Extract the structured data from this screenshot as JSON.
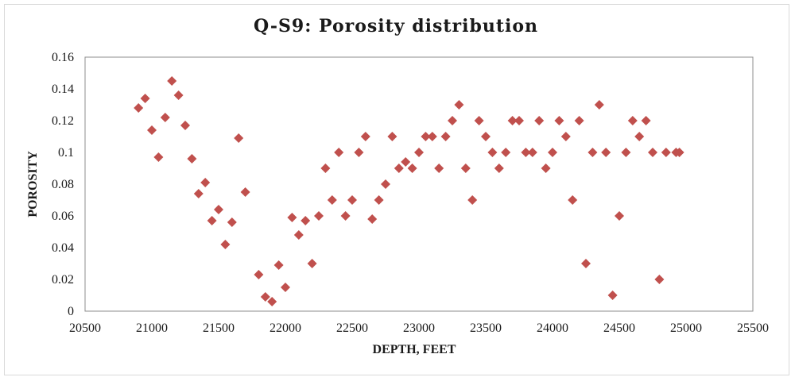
{
  "chart_data": {
    "type": "scatter",
    "title": "Q-S9: Porosity distribution",
    "xlabel": "DEPTH, FEET",
    "ylabel": "POROSITY",
    "xlim": [
      20500,
      25500
    ],
    "ylim": [
      0,
      0.16
    ],
    "xticks": [
      20500,
      21000,
      21500,
      22000,
      22500,
      23000,
      23500,
      24000,
      24500,
      25000,
      25500
    ],
    "xtick_labels": [
      "20500",
      "21000",
      "21500",
      "22000",
      "22500",
      "23000",
      "23500",
      "24000",
      "24500",
      "25000",
      "25500"
    ],
    "yticks": [
      0,
      0.02,
      0.04,
      0.06,
      0.08,
      0.1,
      0.12,
      0.14,
      0.16
    ],
    "ytick_labels": [
      "0",
      "0.02",
      "0.04",
      "0.06",
      "0.08",
      "0.1",
      "0.12",
      "0.14",
      "0.16"
    ],
    "grid": false,
    "marker": "diamond",
    "marker_color": "#c0504d",
    "points": [
      [
        20900,
        0.128
      ],
      [
        20950,
        0.134
      ],
      [
        21000,
        0.114
      ],
      [
        21050,
        0.097
      ],
      [
        21100,
        0.122
      ],
      [
        21150,
        0.145
      ],
      [
        21200,
        0.136
      ],
      [
        21250,
        0.117
      ],
      [
        21300,
        0.096
      ],
      [
        21350,
        0.074
      ],
      [
        21400,
        0.081
      ],
      [
        21450,
        0.057
      ],
      [
        21500,
        0.064
      ],
      [
        21550,
        0.042
      ],
      [
        21600,
        0.056
      ],
      [
        21650,
        0.109
      ],
      [
        21700,
        0.075
      ],
      [
        21800,
        0.023
      ],
      [
        21850,
        0.009
      ],
      [
        21900,
        0.006
      ],
      [
        21950,
        0.029
      ],
      [
        22000,
        0.015
      ],
      [
        22050,
        0.059
      ],
      [
        22100,
        0.048
      ],
      [
        22150,
        0.057
      ],
      [
        22200,
        0.03
      ],
      [
        22250,
        0.06
      ],
      [
        22300,
        0.09
      ],
      [
        22350,
        0.07
      ],
      [
        22400,
        0.1
      ],
      [
        22450,
        0.06
      ],
      [
        22500,
        0.07
      ],
      [
        22550,
        0.1
      ],
      [
        22600,
        0.11
      ],
      [
        22650,
        0.058
      ],
      [
        22700,
        0.07
      ],
      [
        22750,
        0.08
      ],
      [
        22800,
        0.11
      ],
      [
        22850,
        0.09
      ],
      [
        22900,
        0.094
      ],
      [
        22950,
        0.09
      ],
      [
        23000,
        0.1
      ],
      [
        23050,
        0.11
      ],
      [
        23100,
        0.11
      ],
      [
        23150,
        0.09
      ],
      [
        23200,
        0.11
      ],
      [
        23250,
        0.12
      ],
      [
        23300,
        0.13
      ],
      [
        23350,
        0.09
      ],
      [
        23400,
        0.07
      ],
      [
        23450,
        0.12
      ],
      [
        23500,
        0.11
      ],
      [
        23550,
        0.1
      ],
      [
        23600,
        0.09
      ],
      [
        23650,
        0.1
      ],
      [
        23700,
        0.12
      ],
      [
        23750,
        0.12
      ],
      [
        23800,
        0.1
      ],
      [
        23850,
        0.1
      ],
      [
        23900,
        0.12
      ],
      [
        23950,
        0.09
      ],
      [
        24000,
        0.1
      ],
      [
        24050,
        0.12
      ],
      [
        24100,
        0.11
      ],
      [
        24150,
        0.07
      ],
      [
        24200,
        0.12
      ],
      [
        24250,
        0.03
      ],
      [
        24300,
        0.1
      ],
      [
        24350,
        0.13
      ],
      [
        24400,
        0.1
      ],
      [
        24450,
        0.01
      ],
      [
        24500,
        0.06
      ],
      [
        24550,
        0.1
      ],
      [
        24600,
        0.12
      ],
      [
        24650,
        0.11
      ],
      [
        24700,
        0.12
      ],
      [
        24750,
        0.1
      ],
      [
        24800,
        0.02
      ],
      [
        24850,
        0.1
      ],
      [
        24925,
        0.1
      ],
      [
        24950,
        0.1
      ]
    ]
  }
}
